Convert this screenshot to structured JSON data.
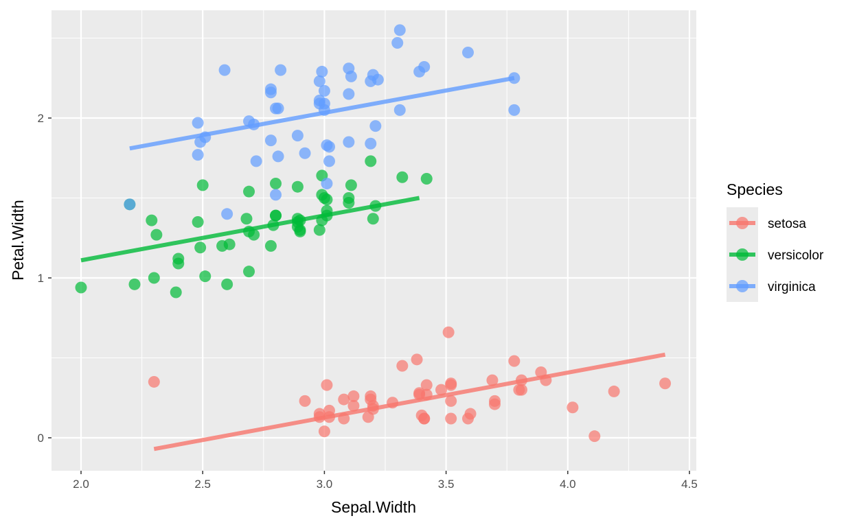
{
  "chart_data": {
    "type": "scatter",
    "xlabel": "Sepal.Width",
    "ylabel": "Petal.Width",
    "xlim": [
      1.88,
      4.56
    ],
    "ylim": [
      -0.2,
      2.68
    ],
    "x_ticks": [
      "2.0",
      "2.5",
      "3.0",
      "3.5",
      "4.0",
      "4.5"
    ],
    "y_ticks": [
      "0",
      "1",
      "2"
    ],
    "grid": true,
    "background": "#EBEBEB",
    "legend": {
      "title": "Species",
      "position": "right"
    },
    "series": [
      {
        "name": "setosa",
        "color": "#F8766D",
        "points": [
          [
            2.3,
            0.35
          ],
          [
            2.92,
            0.23
          ],
          [
            2.98,
            0.13
          ],
          [
            2.98,
            0.15
          ],
          [
            3.0,
            0.04
          ],
          [
            3.01,
            0.33
          ],
          [
            3.02,
            0.17
          ],
          [
            3.02,
            0.13
          ],
          [
            3.08,
            0.24
          ],
          [
            3.08,
            0.12
          ],
          [
            3.12,
            0.26
          ],
          [
            3.12,
            0.2
          ],
          [
            3.18,
            0.13
          ],
          [
            3.19,
            0.26
          ],
          [
            3.19,
            0.24
          ],
          [
            3.2,
            0.2
          ],
          [
            3.2,
            0.18
          ],
          [
            3.28,
            0.22
          ],
          [
            3.32,
            0.45
          ],
          [
            3.38,
            0.49
          ],
          [
            3.39,
            0.28
          ],
          [
            3.39,
            0.27
          ],
          [
            3.4,
            0.14
          ],
          [
            3.41,
            0.12
          ],
          [
            3.41,
            0.12
          ],
          [
            3.42,
            0.33
          ],
          [
            3.42,
            0.27
          ],
          [
            3.48,
            0.3
          ],
          [
            3.51,
            0.66
          ],
          [
            3.52,
            0.34
          ],
          [
            3.52,
            0.33
          ],
          [
            3.52,
            0.23
          ],
          [
            3.52,
            0.12
          ],
          [
            3.59,
            0.12
          ],
          [
            3.6,
            0.15
          ],
          [
            3.69,
            0.36
          ],
          [
            3.7,
            0.21
          ],
          [
            3.7,
            0.23
          ],
          [
            3.78,
            0.48
          ],
          [
            3.8,
            0.3
          ],
          [
            3.81,
            0.36
          ],
          [
            3.81,
            0.3
          ],
          [
            3.89,
            0.41
          ],
          [
            3.91,
            0.36
          ],
          [
            4.02,
            0.19
          ],
          [
            4.11,
            0.01
          ],
          [
            4.19,
            0.29
          ],
          [
            4.4,
            0.34
          ]
        ],
        "fit": [
          [
            2.3,
            -0.07
          ],
          [
            4.4,
            0.52
          ]
        ]
      },
      {
        "name": "versicolor",
        "color": "#00BA38",
        "points": [
          [
            2.0,
            0.94
          ],
          [
            2.2,
            1.46
          ],
          [
            2.22,
            0.96
          ],
          [
            2.29,
            1.36
          ],
          [
            2.3,
            1.0
          ],
          [
            2.31,
            1.27
          ],
          [
            2.39,
            0.91
          ],
          [
            2.4,
            1.09
          ],
          [
            2.4,
            1.12
          ],
          [
            2.48,
            1.35
          ],
          [
            2.49,
            1.19
          ],
          [
            2.5,
            1.58
          ],
          [
            2.51,
            1.01
          ],
          [
            2.58,
            1.2
          ],
          [
            2.6,
            0.96
          ],
          [
            2.61,
            1.21
          ],
          [
            2.68,
            1.37
          ],
          [
            2.69,
            1.29
          ],
          [
            2.69,
            1.04
          ],
          [
            2.69,
            1.54
          ],
          [
            2.71,
            1.27
          ],
          [
            2.78,
            1.2
          ],
          [
            2.79,
            1.33
          ],
          [
            2.8,
            1.59
          ],
          [
            2.8,
            1.39
          ],
          [
            2.8,
            1.39
          ],
          [
            2.89,
            1.57
          ],
          [
            2.89,
            1.37
          ],
          [
            2.89,
            1.35
          ],
          [
            2.89,
            1.32
          ],
          [
            2.9,
            1.3
          ],
          [
            2.9,
            1.29
          ],
          [
            2.9,
            1.36
          ],
          [
            2.98,
            1.3
          ],
          [
            2.99,
            1.52
          ],
          [
            2.99,
            1.64
          ],
          [
            2.99,
            1.36
          ],
          [
            3.0,
            1.5
          ],
          [
            3.01,
            1.49
          ],
          [
            3.01,
            1.39
          ],
          [
            3.01,
            1.42
          ],
          [
            3.1,
            1.47
          ],
          [
            3.1,
            1.5
          ],
          [
            3.11,
            1.58
          ],
          [
            3.19,
            1.73
          ],
          [
            3.2,
            1.37
          ],
          [
            3.21,
            1.45
          ],
          [
            3.32,
            1.63
          ],
          [
            3.42,
            1.62
          ]
        ],
        "fit": [
          [
            2.0,
            1.11
          ],
          [
            3.39,
            1.5
          ]
        ]
      },
      {
        "name": "virginica",
        "color": "#619CFF",
        "points": [
          [
            2.2,
            1.46
          ],
          [
            2.48,
            1.97
          ],
          [
            2.49,
            1.85
          ],
          [
            2.48,
            1.77
          ],
          [
            2.51,
            1.88
          ],
          [
            2.59,
            2.3
          ],
          [
            2.6,
            1.4
          ],
          [
            2.69,
            1.98
          ],
          [
            2.71,
            1.96
          ],
          [
            2.72,
            1.73
          ],
          [
            2.78,
            2.18
          ],
          [
            2.78,
            2.16
          ],
          [
            2.78,
            1.86
          ],
          [
            2.8,
            2.06
          ],
          [
            2.8,
            1.52
          ],
          [
            2.81,
            2.06
          ],
          [
            2.82,
            2.3
          ],
          [
            2.81,
            1.76
          ],
          [
            2.89,
            1.89
          ],
          [
            2.92,
            1.78
          ],
          [
            2.98,
            2.23
          ],
          [
            2.99,
            2.29
          ],
          [
            2.98,
            2.11
          ],
          [
            2.98,
            2.09
          ],
          [
            3.0,
            2.09
          ],
          [
            3.0,
            2.05
          ],
          [
            3.0,
            2.17
          ],
          [
            3.01,
            1.59
          ],
          [
            3.01,
            1.83
          ],
          [
            3.02,
            1.82
          ],
          [
            3.02,
            1.73
          ],
          [
            3.1,
            2.31
          ],
          [
            3.1,
            2.15
          ],
          [
            3.1,
            1.85
          ],
          [
            3.11,
            2.26
          ],
          [
            3.19,
            2.23
          ],
          [
            3.2,
            2.27
          ],
          [
            3.19,
            1.84
          ],
          [
            3.22,
            2.24
          ],
          [
            3.21,
            1.95
          ],
          [
            3.3,
            2.47
          ],
          [
            3.31,
            2.55
          ],
          [
            3.31,
            2.05
          ],
          [
            3.39,
            2.29
          ],
          [
            3.41,
            2.32
          ],
          [
            3.59,
            2.41
          ],
          [
            3.78,
            2.25
          ],
          [
            3.78,
            2.05
          ]
        ],
        "fit": [
          [
            2.2,
            1.81
          ],
          [
            3.78,
            2.25
          ]
        ]
      }
    ]
  }
}
